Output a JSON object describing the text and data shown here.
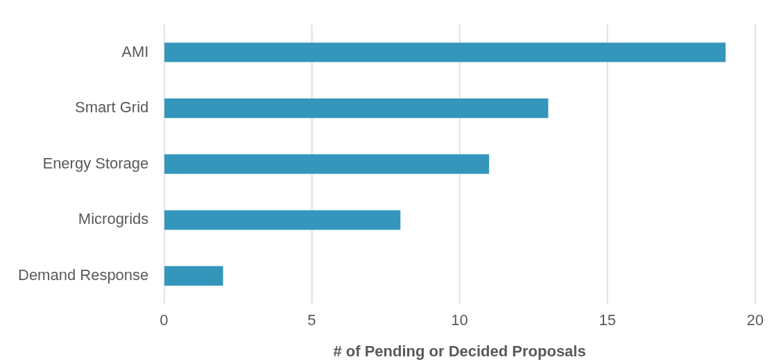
{
  "chart_data": {
    "type": "bar",
    "orientation": "horizontal",
    "xlabel": "# of Pending or Decided Proposals",
    "categories": [
      "AMI",
      "Smart Grid",
      "Energy Storage",
      "Microgrids",
      "Demand Response"
    ],
    "values": [
      19,
      13,
      11,
      8,
      2
    ],
    "color": "#3596bb",
    "xlim": [
      0,
      20
    ],
    "xticks": [
      0,
      5,
      10,
      15,
      20
    ],
    "grid": "x",
    "legend": false
  }
}
